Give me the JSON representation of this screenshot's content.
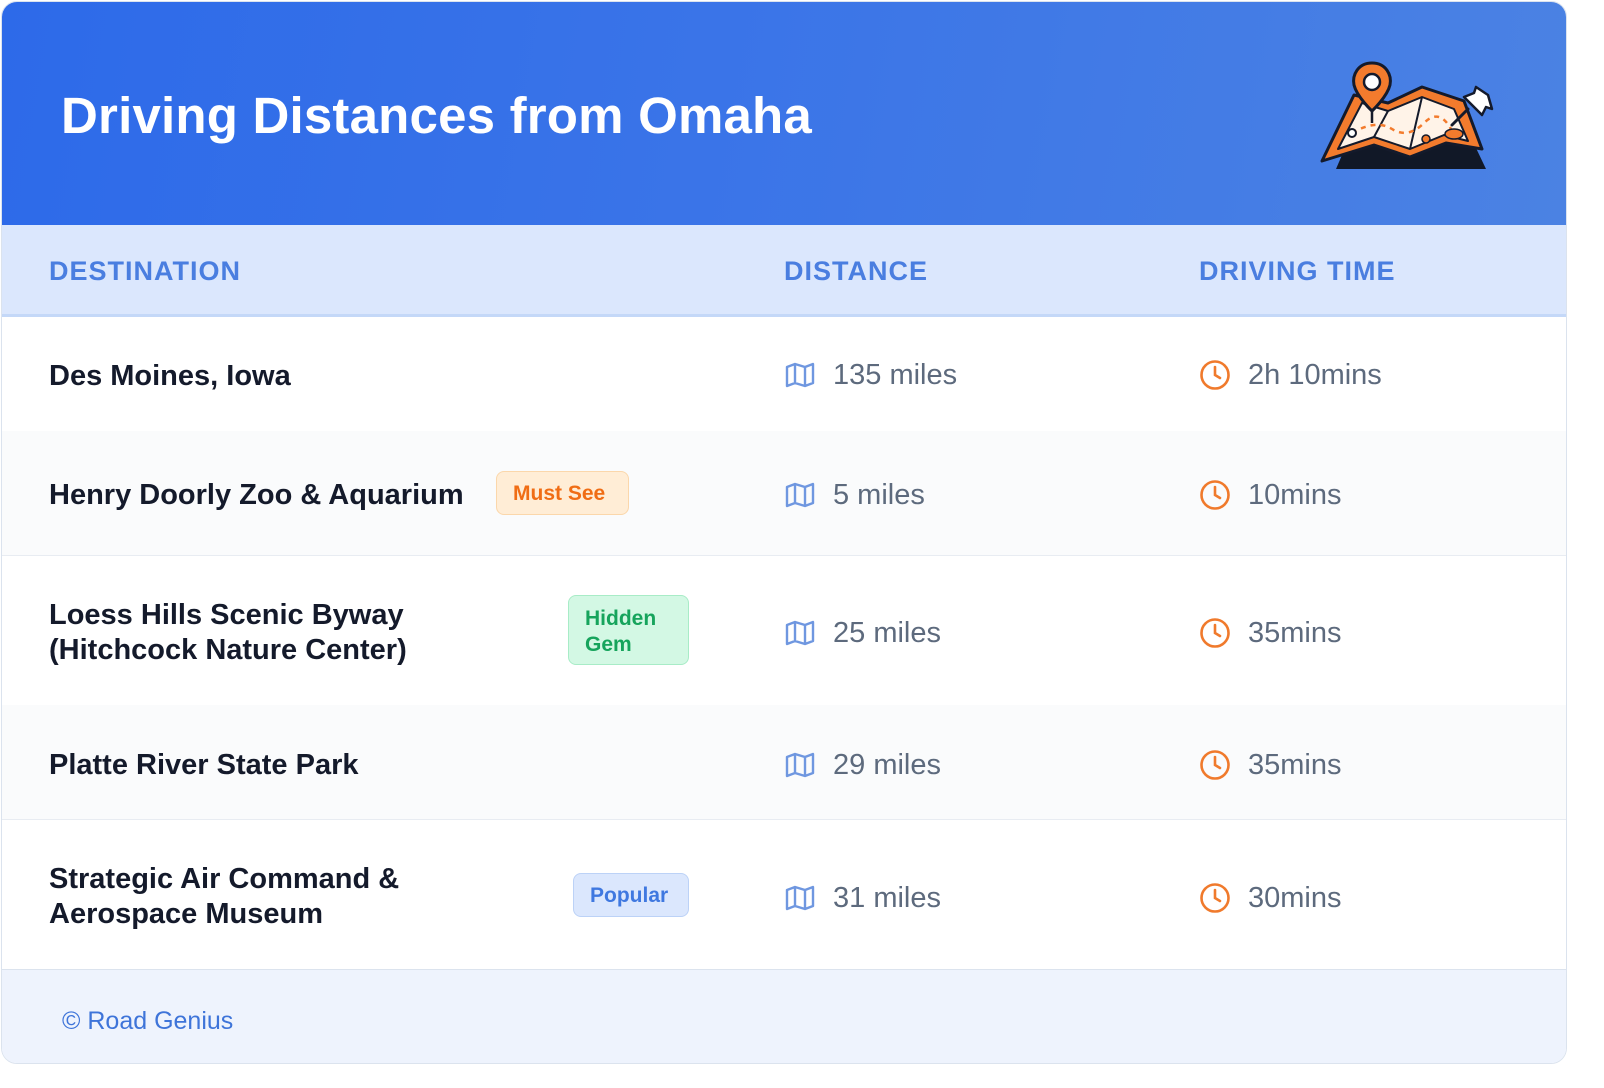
{
  "header": {
    "title": "Driving Distances from Omaha"
  },
  "columns": {
    "destination": "DESTINATION",
    "distance": "DISTANCE",
    "driving_time": "DRIVING TIME"
  },
  "rows": [
    {
      "destination": "Des Moines, Iowa",
      "badge": "",
      "distance": "135 miles",
      "time": "2h 10mins"
    },
    {
      "destination": "Henry Doorly Zoo & Aquarium",
      "badge": "Must See",
      "distance": "5 miles",
      "time": "10mins"
    },
    {
      "destination_line1": "Loess Hills Scenic Byway",
      "destination_line2": "(Hitchcock Nature Center)",
      "badge_line1": "Hidden",
      "badge_line2": "Gem",
      "distance": "25 miles",
      "time": "35mins"
    },
    {
      "destination": "Platte River State Park",
      "badge": "",
      "distance": "29 miles",
      "time": "35mins"
    },
    {
      "destination_line1": "Strategic Air Command &",
      "destination_line2": "Aerospace Museum",
      "badge": "Popular",
      "distance": "31 miles",
      "time": "30mins"
    }
  ],
  "footer": {
    "credit": "© Road Genius"
  },
  "icons": {
    "distance": "map-icon",
    "time": "clock-icon",
    "header": "map-pin-illustration"
  },
  "colors": {
    "header_blue": "#2d6ae9",
    "accent_orange": "#f07a2c",
    "map_icon_blue": "#6f97e0",
    "badge_must_see": "#f06d15",
    "badge_hidden_gem": "#16a45c",
    "badge_popular": "#3f78e0"
  }
}
